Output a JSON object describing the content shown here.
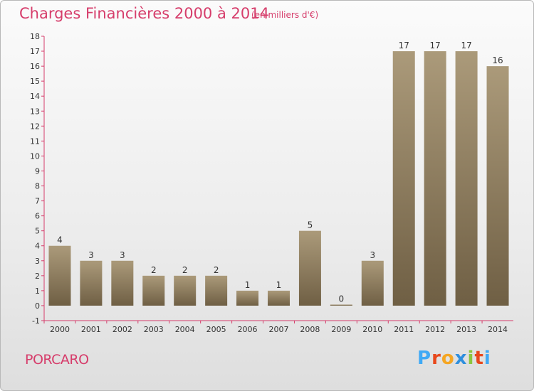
{
  "header": {
    "title": "Charges Financières 2000 à 2014",
    "unit": "(en milliers d'€)"
  },
  "footer": {
    "city": "PORCARO",
    "logo_text": "Proxiti",
    "logo_colors": [
      "#3fa9f5",
      "#e8481c",
      "#f5a623",
      "#2f8fdd",
      "#8cc63f",
      "#e8481c",
      "#3fa9f5"
    ]
  },
  "chart_data": {
    "type": "bar",
    "title": "Charges Financières 2000 à 2014",
    "subtitle": "(en milliers d'€)",
    "categories": [
      "2000",
      "2001",
      "2002",
      "2003",
      "2004",
      "2005",
      "2006",
      "2007",
      "2008",
      "2009",
      "2010",
      "2011",
      "2012",
      "2013",
      "2014"
    ],
    "values": [
      4,
      3,
      3,
      2,
      2,
      2,
      1,
      1,
      5,
      0,
      3,
      17,
      17,
      17,
      16
    ],
    "ylim": [
      -1,
      18
    ],
    "yticks": [
      -1,
      0,
      1,
      2,
      3,
      4,
      5,
      6,
      7,
      8,
      9,
      10,
      11,
      12,
      13,
      14,
      15,
      16,
      17,
      18
    ],
    "bar_color_top": "#ab9a7a",
    "bar_color_bottom": "#6f5f44",
    "axis_color": "#d63d6b",
    "grid": false
  }
}
